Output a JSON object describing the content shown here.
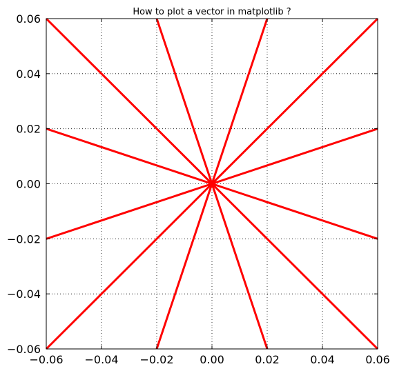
{
  "chart_data": {
    "type": "line",
    "title": "How to plot a vector in matplotlib ?",
    "xlabel": "",
    "ylabel": "",
    "xlim": [
      -0.06,
      0.06
    ],
    "ylim": [
      -0.06,
      0.06
    ],
    "xticks": [
      -0.06,
      -0.04,
      -0.02,
      0.0,
      0.02,
      0.04,
      0.06
    ],
    "yticks": [
      -0.06,
      -0.04,
      -0.02,
      0.0,
      0.02,
      0.04,
      0.06
    ],
    "xtick_labels": [
      "−0.06",
      "−0.04",
      "−0.02",
      "0.00",
      "0.02",
      "0.04",
      "0.06"
    ],
    "ytick_labels": [
      "−0.06",
      "−0.04",
      "−0.02",
      "0.00",
      "0.02",
      "0.04",
      "0.06"
    ],
    "grid": true,
    "grid_style": "dotted",
    "legend": false,
    "line_color": "#ff0000",
    "series": [
      {
        "x": [
          0,
          0.06
        ],
        "y": [
          0,
          0.06
        ]
      },
      {
        "x": [
          0,
          0.06
        ],
        "y": [
          0,
          0.02
        ]
      },
      {
        "x": [
          0,
          0.06
        ],
        "y": [
          0,
          -0.02
        ]
      },
      {
        "x": [
          0,
          0.06
        ],
        "y": [
          0,
          -0.06
        ]
      },
      {
        "x": [
          0,
          0.02
        ],
        "y": [
          0,
          -0.06
        ]
      },
      {
        "x": [
          0,
          -0.02
        ],
        "y": [
          0,
          -0.06
        ]
      },
      {
        "x": [
          0,
          -0.06
        ],
        "y": [
          0,
          -0.06
        ]
      },
      {
        "x": [
          0,
          -0.06
        ],
        "y": [
          0,
          -0.02
        ]
      },
      {
        "x": [
          0,
          -0.06
        ],
        "y": [
          0,
          0.02
        ]
      },
      {
        "x": [
          0,
          -0.06
        ],
        "y": [
          0,
          0.06
        ]
      },
      {
        "x": [
          0,
          -0.02
        ],
        "y": [
          0,
          0.06
        ]
      },
      {
        "x": [
          0,
          0.02
        ],
        "y": [
          0,
          0.06
        ]
      }
    ]
  }
}
